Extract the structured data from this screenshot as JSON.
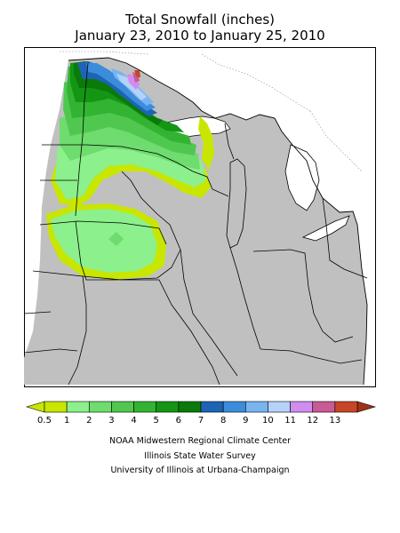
{
  "title": {
    "line1": "Total Snowfall (inches)",
    "line2": "January 23, 2010 to January 25, 2010"
  },
  "credits": {
    "line1": "NOAA Midwestern Regional Climate Center",
    "line2": "Illinois State Water Survey",
    "line3": "University of Illinois at Urbana-Champaign"
  },
  "legend": {
    "bins": [
      {
        "label": "0.5",
        "color": "#c8e600"
      },
      {
        "label": "1",
        "color": "#8cf08c"
      },
      {
        "label": "2",
        "color": "#6edc6e"
      },
      {
        "label": "3",
        "color": "#50c850"
      },
      {
        "label": "4",
        "color": "#32b432"
      },
      {
        "label": "5",
        "color": "#149614"
      },
      {
        "label": "6",
        "color": "#0a7a0a"
      },
      {
        "label": "7",
        "color": "#1e64b4"
      },
      {
        "label": "8",
        "color": "#3c8cdc"
      },
      {
        "label": "9",
        "color": "#78b4f0"
      },
      {
        "label": "10",
        "color": "#b4d2fa"
      },
      {
        "label": "11",
        "color": "#d28cf0"
      },
      {
        "label": "12",
        "color": "#c85a96"
      },
      {
        "label": "13",
        "color": "#c84628"
      }
    ],
    "low_color": "#c8e600",
    "high_color": "#a03214"
  },
  "map": {
    "background_color": "#c0c0c0",
    "border_color": "#000000"
  }
}
